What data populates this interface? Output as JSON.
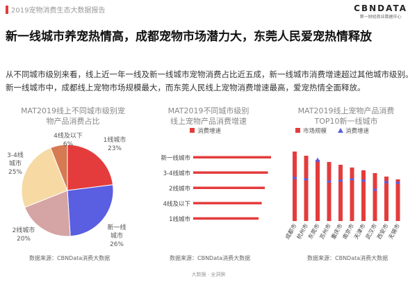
{
  "header": {
    "title": "2019宠物消费生态大数据报告"
  },
  "logo": {
    "main": "CBNDATA",
    "sub": "第一财经商业数据中心"
  },
  "headline": "新一线城市养宠热情高，成都宠物市场潜力大，东莞人民爱宠热情释放",
  "summary": "从不同城市级别来看，线上近一年一线及新一线城市宠物消费占比近五成，新一线城市消费增速超过其他城市级别。新一线城市中，成都线上宠物市场规模最大，而东莞人民线上宠物消费增速最高，爱宠热情全面释放。",
  "colors": {
    "accent": "#e23b3b"
  },
  "chart_data": [
    {
      "type": "pie",
      "title": "MAT2019线上不同城市级别宠物产品消费占比",
      "title_lines": [
        "MAT2019线上不同城市级别宠",
        "物产品消费占比"
      ],
      "slices": [
        {
          "label": "1线城市",
          "value": 23,
          "value_text": "23%",
          "color": "#e43c3c"
        },
        {
          "label": "新一线城市",
          "value": 26,
          "value_text": "26%",
          "color": "#5a5ee0"
        },
        {
          "label": "2线城市",
          "value": 20,
          "value_text": "20%",
          "color": "#d5a4a4"
        },
        {
          "label": "3-4线城市",
          "value": 25,
          "value_text": "25%",
          "color": "#f7d9a4"
        },
        {
          "label": "4线及以下",
          "value": 6,
          "value_text": "6%",
          "color": "#d57a52"
        }
      ],
      "source": "数据来源：CBNData消费大数据"
    },
    {
      "type": "bar",
      "orientation": "horizontal",
      "title": "MAT2019不同城市级别线上宠物产品消费增速",
      "title_lines": [
        "MAT2019不同城市级别",
        "线上宠物产品消费增速"
      ],
      "legend": [
        "消费增速"
      ],
      "categories": [
        "新一线城市",
        "3-4线城市",
        "2线城市",
        "4线及以下",
        "1线城市"
      ],
      "values": [
        100,
        96,
        92,
        88,
        84
      ],
      "value_note": "relative growth (no axis printed)",
      "color": "#e43c3c",
      "source": "数据来源：CBNData消费大数据"
    },
    {
      "type": "bar",
      "title": "MAT2019线上宠物产品消费TOP10新一线城市",
      "title_lines": [
        "MAT2019线上宠物产品消费",
        "TOP10新一线城市"
      ],
      "legend": [
        "市场规模",
        "消费增速"
      ],
      "categories": [
        "成都市",
        "杭州市",
        "东莞市",
        "苏州市",
        "重庆市",
        "南京市",
        "天津市",
        "武汉市",
        "西安市",
        "无锡市"
      ],
      "series": [
        {
          "name": "市场规模",
          "values": [
            100,
            94,
            88,
            85,
            81,
            77,
            73,
            69,
            64,
            60
          ],
          "color": "#e43c3c"
        },
        {
          "name": "消费增速",
          "values": [
            62,
            60,
            88,
            57,
            58,
            60,
            58,
            45,
            56,
            55
          ],
          "color": "#5a5ee0"
        }
      ],
      "value_note": "relative index (no axis printed)",
      "source": "数据来源：CBNData消费大数据"
    }
  ],
  "watermark": "CBNData",
  "footer": "大数据 · 全洞察"
}
